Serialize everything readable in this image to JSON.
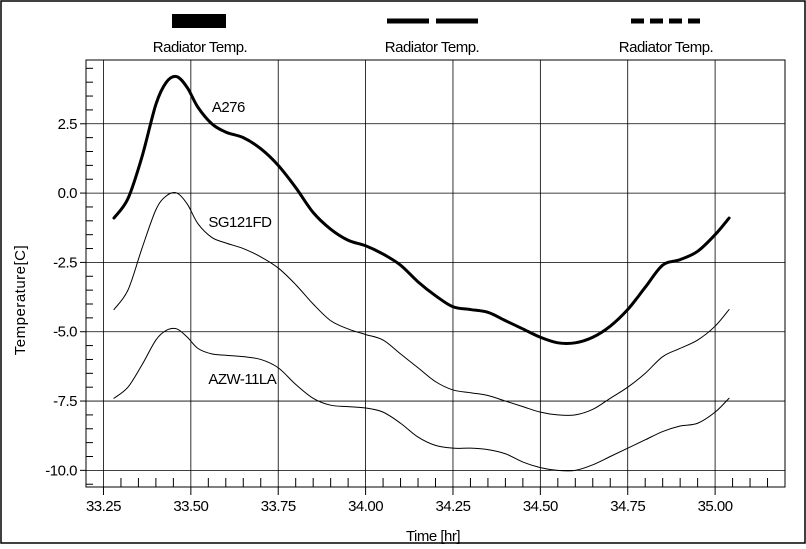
{
  "chart_data": {
    "type": "line",
    "xlabel": "Time [hr]",
    "ylabel": "Temperature[C]",
    "xlim": [
      33.2,
      35.2
    ],
    "ylim": [
      -10.6,
      4.8
    ],
    "x_ticks": [
      33.25,
      33.5,
      33.75,
      34.0,
      34.25,
      34.5,
      34.75,
      35.0
    ],
    "x_tick_labels": [
      "33.25",
      "33.50",
      "33.75",
      "34.00",
      "34.25",
      "34.50",
      "34.75",
      "35.00"
    ],
    "y_ticks": [
      2.5,
      0.0,
      -2.5,
      -5.0,
      -7.5,
      -10.0
    ],
    "y_tick_labels": [
      "2.5",
      "0.0",
      "-2.5",
      "-5.0",
      "-7.5",
      "-10.0"
    ],
    "grid": true,
    "legend": {
      "placement": "top",
      "entries": [
        {
          "label": "Radiator Temp.",
          "style": "thick-solid"
        },
        {
          "label": "Radiator Temp.",
          "style": "long-dash"
        },
        {
          "label": "Radiator Temp.",
          "style": "short-dash"
        }
      ]
    },
    "series": [
      {
        "name": "A276",
        "style": "thick",
        "x": [
          33.28,
          33.32,
          33.36,
          33.4,
          33.43,
          33.46,
          33.49,
          33.52,
          33.56,
          33.6,
          33.65,
          33.7,
          33.75,
          33.8,
          33.85,
          33.9,
          33.95,
          34.0,
          34.05,
          34.1,
          34.15,
          34.2,
          34.25,
          34.3,
          34.35,
          34.4,
          34.45,
          34.5,
          34.55,
          34.6,
          34.65,
          34.7,
          34.75,
          34.8,
          34.85,
          34.9,
          34.95,
          35.0,
          35.04
        ],
        "y": [
          -0.9,
          -0.2,
          1.3,
          3.2,
          4.0,
          4.2,
          3.8,
          3.1,
          2.5,
          2.2,
          2.0,
          1.6,
          1.0,
          0.2,
          -0.7,
          -1.3,
          -1.7,
          -1.9,
          -2.2,
          -2.6,
          -3.2,
          -3.7,
          -4.1,
          -4.2,
          -4.3,
          -4.6,
          -4.9,
          -5.2,
          -5.4,
          -5.4,
          -5.2,
          -4.8,
          -4.2,
          -3.4,
          -2.6,
          -2.4,
          -2.1,
          -1.5,
          -0.9
        ]
      },
      {
        "name": "SG121FD",
        "style": "thin",
        "x": [
          33.28,
          33.32,
          33.36,
          33.4,
          33.43,
          33.46,
          33.49,
          33.52,
          33.56,
          33.6,
          33.65,
          33.7,
          33.75,
          33.8,
          33.85,
          33.9,
          33.95,
          34.0,
          34.05,
          34.1,
          34.15,
          34.2,
          34.25,
          34.3,
          34.35,
          34.4,
          34.45,
          34.5,
          34.55,
          34.6,
          34.65,
          34.7,
          34.75,
          34.8,
          34.85,
          34.9,
          34.95,
          35.0,
          35.04
        ],
        "y": [
          -4.2,
          -3.5,
          -2.0,
          -0.6,
          -0.1,
          0.0,
          -0.4,
          -1.1,
          -1.6,
          -1.8,
          -2.0,
          -2.3,
          -2.7,
          -3.3,
          -4.0,
          -4.6,
          -4.9,
          -5.1,
          -5.3,
          -5.8,
          -6.3,
          -6.8,
          -7.1,
          -7.2,
          -7.3,
          -7.5,
          -7.7,
          -7.9,
          -8.0,
          -8.0,
          -7.8,
          -7.4,
          -7.0,
          -6.5,
          -5.9,
          -5.6,
          -5.3,
          -4.8,
          -4.2
        ]
      },
      {
        "name": "AZW-11LA",
        "style": "thin",
        "x": [
          33.28,
          33.32,
          33.36,
          33.4,
          33.43,
          33.46,
          33.49,
          33.52,
          33.56,
          33.6,
          33.65,
          33.7,
          33.75,
          33.8,
          33.85,
          33.9,
          33.95,
          34.0,
          34.05,
          34.1,
          34.15,
          34.2,
          34.25,
          34.3,
          34.35,
          34.4,
          34.45,
          34.5,
          34.55,
          34.6,
          34.65,
          34.7,
          34.75,
          34.8,
          34.85,
          34.9,
          34.95,
          35.0,
          35.04
        ],
        "y": [
          -7.4,
          -7.0,
          -6.2,
          -5.3,
          -4.95,
          -4.9,
          -5.2,
          -5.6,
          -5.8,
          -5.85,
          -5.9,
          -6.0,
          -6.3,
          -6.9,
          -7.4,
          -7.65,
          -7.7,
          -7.75,
          -7.9,
          -8.3,
          -8.8,
          -9.1,
          -9.2,
          -9.2,
          -9.25,
          -9.4,
          -9.7,
          -9.9,
          -10.0,
          -10.0,
          -9.8,
          -9.5,
          -9.2,
          -8.9,
          -8.6,
          -8.4,
          -8.3,
          -7.9,
          -7.4
        ]
      }
    ],
    "annotations": [
      {
        "text": "A276",
        "x": 33.56,
        "y": 3.1
      },
      {
        "text": "SG121FD",
        "x": 33.55,
        "y": -1.05
      },
      {
        "text": "AZW-11LA",
        "x": 33.55,
        "y": -6.7
      }
    ]
  }
}
